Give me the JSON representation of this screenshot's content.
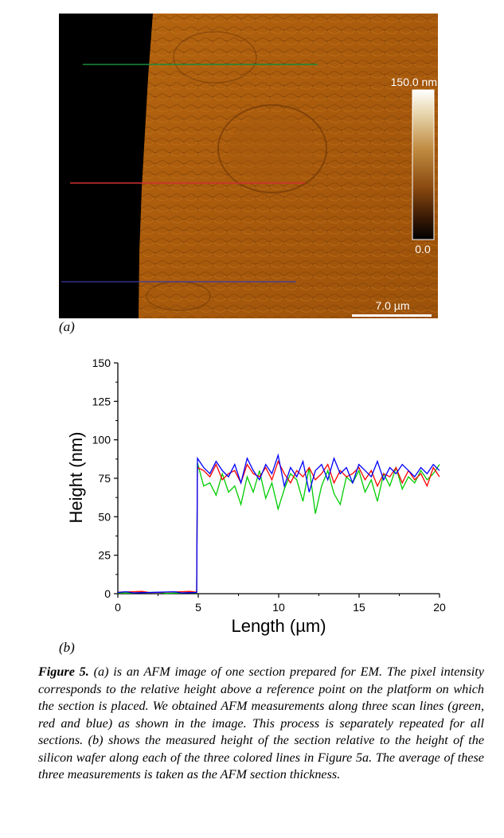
{
  "afm_image": {
    "scale_max_label": "150.0 nm",
    "scale_min_label": "0.0",
    "scale_bar_label": "7.0 µm",
    "scan_lines": [
      {
        "color": "#1a8a3a"
      },
      {
        "color": "#d03030"
      },
      {
        "color": "#3a3aa8"
      }
    ]
  },
  "labels": {
    "panel_a": "(a)",
    "panel_b": "(b)"
  },
  "chart_data": {
    "type": "line",
    "xlabel": "Length (µm)",
    "ylabel": "Height (nm)",
    "xlim": [
      0,
      20
    ],
    "ylim": [
      0,
      150
    ],
    "x_ticks": [
      0,
      5,
      10,
      15,
      20
    ],
    "y_ticks": [
      0,
      25,
      50,
      75,
      100,
      125,
      150
    ],
    "x_tick_labels": [
      "0",
      "5",
      "10",
      "15",
      "20"
    ],
    "y_tick_labels": [
      "0",
      "25",
      "50",
      "75",
      "100",
      "125",
      "150"
    ],
    "step_x": 4.9,
    "grid": false,
    "series": [
      {
        "color": "#00cc00",
        "baseline": 0.5,
        "plateau": [
          85,
          70,
          72,
          64,
          78,
          66,
          70,
          58,
          76,
          66,
          80,
          62,
          72,
          55,
          68,
          78,
          74,
          60,
          82,
          52,
          70,
          80,
          65,
          58,
          76,
          72,
          80,
          66,
          74,
          60,
          78,
          70,
          82,
          68,
          76,
          72,
          80,
          74,
          78,
          84
        ]
      },
      {
        "color": "#ff0000",
        "baseline": 1.0,
        "plateau": [
          82,
          80,
          76,
          84,
          74,
          78,
          80,
          72,
          84,
          78,
          76,
          82,
          74,
          86,
          78,
          72,
          80,
          76,
          82,
          74,
          78,
          84,
          72,
          80,
          76,
          78,
          82,
          74,
          80,
          70,
          78,
          76,
          82,
          72,
          80,
          74,
          78,
          70,
          82,
          76
        ]
      },
      {
        "color": "#0000ff",
        "baseline": 0.8,
        "plateau": [
          88,
          82,
          78,
          86,
          80,
          76,
          84,
          72,
          88,
          80,
          74,
          84,
          78,
          90,
          70,
          82,
          76,
          86,
          66,
          80,
          84,
          74,
          88,
          78,
          82,
          72,
          84,
          80,
          76,
          86,
          74,
          82,
          78,
          84,
          80,
          76,
          82,
          78,
          84,
          80
        ]
      }
    ]
  },
  "caption": {
    "figure_number": "Figure 5.",
    "text": " (a) is an AFM image of one section prepared for EM. The pixel intensity corresponds to the relative height above a reference point on the platform on which the section is placed. We obtained AFM measurements along three scan lines (green, red and blue) as shown in the image. This process is separately repeated for all sections. (b) shows the measured height of the section relative to the height of the silicon wafer along each of the three colored lines in Figure 5a. The average of these three measurements is taken as the AFM section thickness."
  }
}
